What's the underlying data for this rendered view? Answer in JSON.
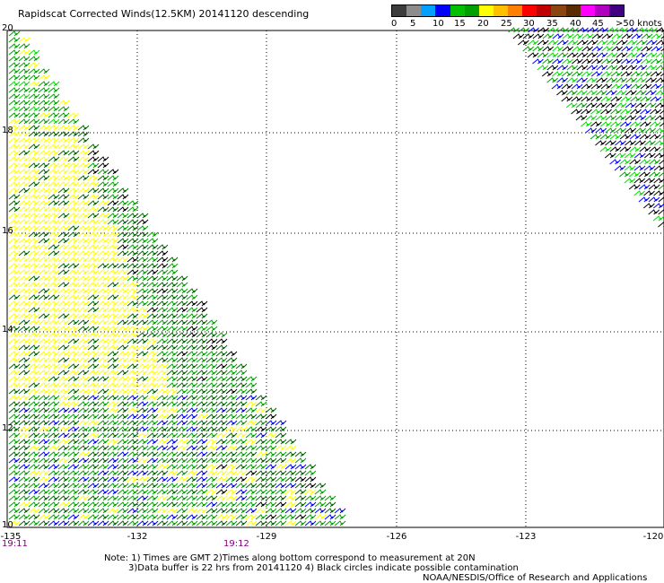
{
  "title": "Rapidscat Corrected Winds(12.5KM) 20141120 descending",
  "color_scale": {
    "labels": [
      "0",
      "5",
      "10",
      "15",
      "20",
      "25",
      "30",
      "35",
      "40",
      "45",
      ">50 knots"
    ],
    "colors": [
      "#3c3c3c",
      "#8c8c8c",
      "#00a0ff",
      "#0000ff",
      "#00c000",
      "#00a000",
      "#ffff00",
      "#ffc000",
      "#ff8000",
      "#ff0000",
      "#c00000",
      "#8b4513",
      "#5a2a00",
      "#ff00ff",
      "#b000c0",
      "#400080"
    ]
  },
  "axes": {
    "x_ticks": [
      "-135",
      "-132",
      "-129",
      "-126",
      "-123",
      "-120"
    ],
    "y_ticks": [
      "20",
      "18",
      "16",
      "14",
      "12",
      "10"
    ]
  },
  "times": {
    "left": "19:11",
    "middle": "19:12"
  },
  "notes": {
    "line1": "Note: 1) Times are GMT 2)Times along bottom correspond to measurement at 20N",
    "line2": "3)Data buffer is 22 hrs from 20141120 4) Black circles indicate possible contamination",
    "line3": "NOAA/NESDIS/Office of Research and Applications"
  },
  "wind_colors": {
    "light": "#ffff00",
    "moderate": "#00a000",
    "strong": "#000000",
    "weak": "#0000ff",
    "fresh": "#00e000"
  }
}
